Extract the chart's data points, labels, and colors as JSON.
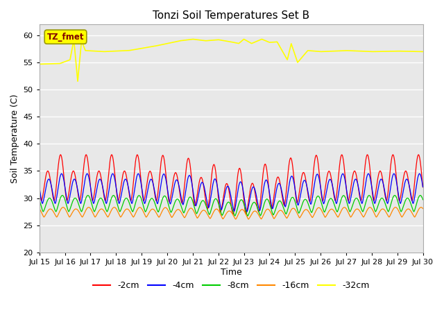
{
  "title": "Tonzi Soil Temperatures Set B",
  "xlabel": "Time",
  "ylabel": "Soil Temperature (C)",
  "ylim": [
    20,
    62
  ],
  "xlim": [
    0,
    15
  ],
  "yticks": [
    20,
    25,
    30,
    35,
    40,
    45,
    50,
    55,
    60
  ],
  "xtick_labels": [
    "Jul 15",
    "Jul 16",
    "Jul 17",
    "Jul 18",
    "Jul 19",
    "Jul 20",
    "Jul 21",
    "Jul 22",
    "Jul 23",
    "Jul 24",
    "Jul 25",
    "Jul 26",
    "Jul 27",
    "Jul 28",
    "Jul 29",
    "Jul 30"
  ],
  "series_colors": {
    "-2cm": "#ff0000",
    "-4cm": "#0000ff",
    "-8cm": "#00cc00",
    "-16cm": "#ff8800",
    "-32cm": "#ffff00"
  },
  "legend_label": "TZ_fmet",
  "legend_facecolor": "#ffff00",
  "legend_edgecolor": "#999900",
  "legend_text_color": "#800000",
  "bg_color": "#e8e8e8",
  "grid_color": "#ffffff",
  "fig_bg": "#ffffff"
}
